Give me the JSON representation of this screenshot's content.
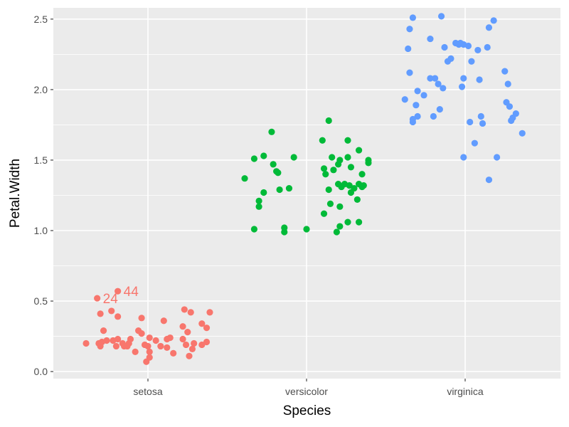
{
  "chart_data": {
    "type": "scatter",
    "title": "",
    "xlabel": "Species",
    "ylabel": "Petal.Width",
    "categories": [
      "setosa",
      "versicolor",
      "virginica"
    ],
    "ylim": [
      -0.05,
      2.58
    ],
    "y_ticks": [
      0.0,
      0.5,
      1.0,
      1.5,
      2.0,
      2.5
    ],
    "y_tick_labels": [
      "0.0",
      "0.5",
      "1.0",
      "1.5",
      "2.0",
      "2.5"
    ],
    "grid": true,
    "legend": "none",
    "jitter": true,
    "series": [
      {
        "category": "setosa",
        "color": "#F8766D",
        "points": [
          {
            "x": -0.39,
            "y": 0.2
          },
          {
            "x": -0.32,
            "y": 0.52
          },
          {
            "x": -0.31,
            "y": 0.2
          },
          {
            "x": -0.3,
            "y": 0.41
          },
          {
            "x": -0.3,
            "y": 0.18
          },
          {
            "x": -0.29,
            "y": 0.21
          },
          {
            "x": -0.28,
            "y": 0.29
          },
          {
            "x": -0.26,
            "y": 0.22
          },
          {
            "x": -0.23,
            "y": 0.43
          },
          {
            "x": -0.22,
            "y": 0.22
          },
          {
            "x": -0.19,
            "y": 0.57
          },
          {
            "x": -0.19,
            "y": 0.39
          },
          {
            "x": -0.19,
            "y": 0.23
          },
          {
            "x": -0.16,
            "y": 0.2
          },
          {
            "x": -0.15,
            "y": 0.18
          },
          {
            "x": -0.13,
            "y": 0.18
          },
          {
            "x": -0.12,
            "y": 0.2
          },
          {
            "x": -0.11,
            "y": 0.23
          },
          {
            "x": -0.06,
            "y": 0.29
          },
          {
            "x": -0.04,
            "y": 0.38
          },
          {
            "x": -0.04,
            "y": 0.27
          },
          {
            "x": -0.02,
            "y": 0.19
          },
          {
            "x": -0.01,
            "y": 0.07
          },
          {
            "x": 0.0,
            "y": 0.18
          },
          {
            "x": 0.01,
            "y": 0.24
          },
          {
            "x": 0.01,
            "y": 0.14
          },
          {
            "x": 0.01,
            "y": 0.1
          },
          {
            "x": 0.05,
            "y": 0.22
          },
          {
            "x": 0.08,
            "y": 0.18
          },
          {
            "x": 0.12,
            "y": 0.23
          },
          {
            "x": 0.12,
            "y": 0.17
          },
          {
            "x": 0.14,
            "y": 0.24
          },
          {
            "x": 0.16,
            "y": 0.13
          },
          {
            "x": 0.22,
            "y": 0.23
          },
          {
            "x": 0.22,
            "y": 0.32
          },
          {
            "x": 0.23,
            "y": 0.44
          },
          {
            "x": 0.24,
            "y": 0.19
          },
          {
            "x": 0.25,
            "y": 0.28
          },
          {
            "x": 0.26,
            "y": 0.11
          },
          {
            "x": 0.27,
            "y": 0.42
          },
          {
            "x": 0.28,
            "y": 0.16
          },
          {
            "x": 0.29,
            "y": 0.2
          },
          {
            "x": 0.34,
            "y": 0.34
          },
          {
            "x": 0.34,
            "y": 0.19
          },
          {
            "x": 0.37,
            "y": 0.21
          },
          {
            "x": 0.37,
            "y": 0.31
          },
          {
            "x": 0.39,
            "y": 0.42
          },
          {
            "x": -0.08,
            "y": 0.14
          },
          {
            "x": 0.1,
            "y": 0.36
          },
          {
            "x": -0.2,
            "y": 0.18
          }
        ]
      },
      {
        "category": "versicolor",
        "color": "#00BA38",
        "points": [
          {
            "x": -0.39,
            "y": 1.37
          },
          {
            "x": -0.33,
            "y": 1.01
          },
          {
            "x": -0.33,
            "y": 1.51
          },
          {
            "x": -0.3,
            "y": 1.21
          },
          {
            "x": -0.3,
            "y": 1.17
          },
          {
            "x": -0.27,
            "y": 1.53
          },
          {
            "x": -0.27,
            "y": 1.27
          },
          {
            "x": -0.22,
            "y": 1.7
          },
          {
            "x": -0.21,
            "y": 1.47
          },
          {
            "x": -0.19,
            "y": 1.42
          },
          {
            "x": -0.18,
            "y": 1.41
          },
          {
            "x": -0.17,
            "y": 1.29
          },
          {
            "x": -0.14,
            "y": 0.99
          },
          {
            "x": -0.14,
            "y": 1.02
          },
          {
            "x": -0.11,
            "y": 1.3
          },
          {
            "x": -0.08,
            "y": 1.52
          },
          {
            "x": 0.0,
            "y": 1.01
          },
          {
            "x": 0.1,
            "y": 1.64
          },
          {
            "x": 0.11,
            "y": 1.12
          },
          {
            "x": 0.11,
            "y": 1.44
          },
          {
            "x": 0.12,
            "y": 1.4
          },
          {
            "x": 0.14,
            "y": 1.78
          },
          {
            "x": 0.14,
            "y": 1.29
          },
          {
            "x": 0.15,
            "y": 1.19
          },
          {
            "x": 0.16,
            "y": 1.52
          },
          {
            "x": 0.17,
            "y": 1.43
          },
          {
            "x": 0.19,
            "y": 0.99
          },
          {
            "x": 0.2,
            "y": 1.47
          },
          {
            "x": 0.2,
            "y": 1.33
          },
          {
            "x": 0.21,
            "y": 1.5
          },
          {
            "x": 0.21,
            "y": 1.17
          },
          {
            "x": 0.21,
            "y": 1.03
          },
          {
            "x": 0.22,
            "y": 1.31
          },
          {
            "x": 0.24,
            "y": 1.33
          },
          {
            "x": 0.26,
            "y": 1.06
          },
          {
            "x": 0.26,
            "y": 1.52
          },
          {
            "x": 0.26,
            "y": 1.64
          },
          {
            "x": 0.27,
            "y": 1.32
          },
          {
            "x": 0.28,
            "y": 1.27
          },
          {
            "x": 0.28,
            "y": 1.45
          },
          {
            "x": 0.3,
            "y": 1.3
          },
          {
            "x": 0.32,
            "y": 1.22
          },
          {
            "x": 0.33,
            "y": 1.57
          },
          {
            "x": 0.33,
            "y": 1.06
          },
          {
            "x": 0.33,
            "y": 1.33
          },
          {
            "x": 0.35,
            "y": 1.31
          },
          {
            "x": 0.35,
            "y": 1.4
          },
          {
            "x": 0.36,
            "y": 1.32
          },
          {
            "x": 0.39,
            "y": 1.5
          },
          {
            "x": 0.39,
            "y": 1.48
          }
        ]
      },
      {
        "category": "virginica",
        "color": "#619CFF",
        "points": [
          {
            "x": -0.38,
            "y": 1.93
          },
          {
            "x": -0.36,
            "y": 2.29
          },
          {
            "x": -0.35,
            "y": 2.12
          },
          {
            "x": -0.35,
            "y": 2.43
          },
          {
            "x": -0.33,
            "y": 1.77
          },
          {
            "x": -0.33,
            "y": 1.79
          },
          {
            "x": -0.33,
            "y": 2.51
          },
          {
            "x": -0.31,
            "y": 1.89
          },
          {
            "x": -0.3,
            "y": 1.81
          },
          {
            "x": -0.3,
            "y": 1.99
          },
          {
            "x": -0.26,
            "y": 1.96
          },
          {
            "x": -0.22,
            "y": 2.36
          },
          {
            "x": -0.22,
            "y": 2.08
          },
          {
            "x": -0.2,
            "y": 1.81
          },
          {
            "x": -0.19,
            "y": 2.08
          },
          {
            "x": -0.17,
            "y": 2.04
          },
          {
            "x": -0.16,
            "y": 1.86
          },
          {
            "x": -0.15,
            "y": 2.52
          },
          {
            "x": -0.14,
            "y": 2.01
          },
          {
            "x": -0.13,
            "y": 2.3
          },
          {
            "x": -0.11,
            "y": 2.2
          },
          {
            "x": -0.09,
            "y": 2.22
          },
          {
            "x": -0.06,
            "y": 2.33
          },
          {
            "x": -0.03,
            "y": 2.33
          },
          {
            "x": -0.02,
            "y": 2.02
          },
          {
            "x": -0.01,
            "y": 2.32
          },
          {
            "x": -0.01,
            "y": 1.52
          },
          {
            "x": -0.01,
            "y": 2.08
          },
          {
            "x": 0.03,
            "y": 1.77
          },
          {
            "x": 0.04,
            "y": 2.2
          },
          {
            "x": 0.06,
            "y": 1.62
          },
          {
            "x": 0.08,
            "y": 2.28
          },
          {
            "x": 0.09,
            "y": 2.07
          },
          {
            "x": 0.1,
            "y": 1.81
          },
          {
            "x": 0.11,
            "y": 1.76
          },
          {
            "x": 0.14,
            "y": 2.3
          },
          {
            "x": 0.15,
            "y": 1.36
          },
          {
            "x": 0.15,
            "y": 2.44
          },
          {
            "x": 0.18,
            "y": 2.49
          },
          {
            "x": 0.2,
            "y": 1.52
          },
          {
            "x": 0.25,
            "y": 2.13
          },
          {
            "x": 0.26,
            "y": 1.91
          },
          {
            "x": 0.27,
            "y": 2.04
          },
          {
            "x": 0.28,
            "y": 1.88
          },
          {
            "x": 0.29,
            "y": 1.78
          },
          {
            "x": 0.3,
            "y": 1.8
          },
          {
            "x": 0.32,
            "y": 1.83
          },
          {
            "x": 0.36,
            "y": 1.69
          },
          {
            "x": -0.04,
            "y": 2.32
          },
          {
            "x": 0.02,
            "y": 2.31
          }
        ]
      }
    ],
    "annotations": [
      {
        "text": "24",
        "category": "setosa",
        "x": -0.32,
        "y": 0.52
      },
      {
        "text": "44",
        "category": "setosa",
        "x": -0.19,
        "y": 0.57
      }
    ]
  }
}
